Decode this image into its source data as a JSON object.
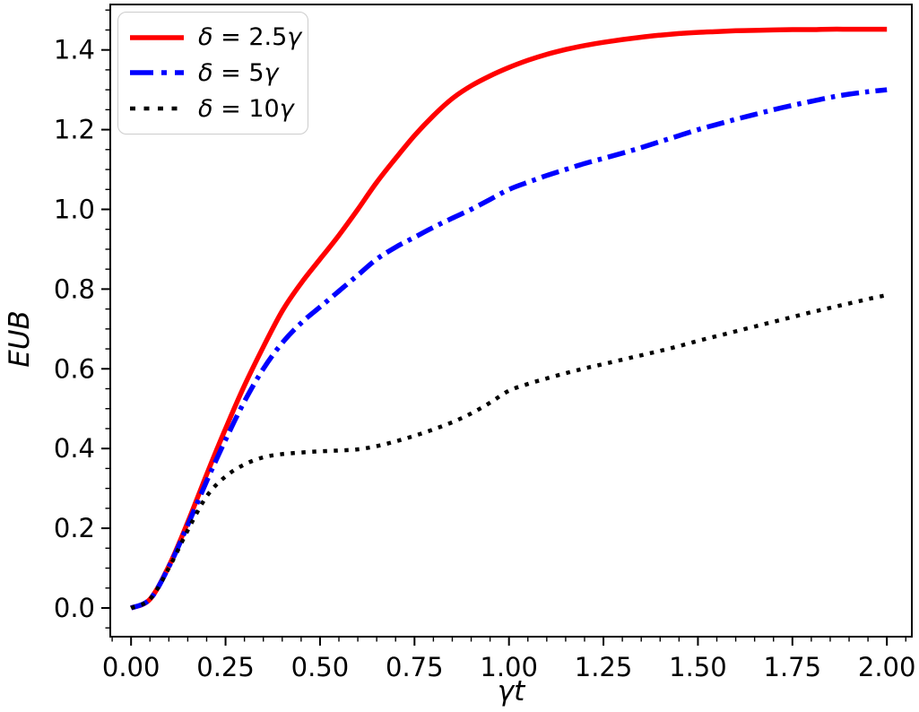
{
  "figure": {
    "background": "#ffffff",
    "legend": {
      "items": [
        {
          "sym": "δ",
          "eq": " = ",
          "val": "2.5",
          "unit": "γ"
        },
        {
          "sym": "δ",
          "eq": " = ",
          "val": "5",
          "unit": "γ"
        },
        {
          "sym": "δ",
          "eq": " = ",
          "val": "10",
          "unit": "γ"
        }
      ]
    }
  },
  "chart_data": {
    "type": "line",
    "title": "",
    "xlabel": "γt",
    "ylabel": "EUB",
    "xlim": [
      -0.055,
      2.066
    ],
    "ylim": [
      -0.072,
      1.514
    ],
    "xtick_labels": [
      "0.00",
      "0.25",
      "0.50",
      "0.75",
      "1.00",
      "1.25",
      "1.50",
      "1.75",
      "2.00"
    ],
    "ytick_labels": [
      "0.0",
      "0.2",
      "0.4",
      "0.6",
      "0.8",
      "1.0",
      "1.2",
      "1.4"
    ],
    "minor_xtick_step": 0.05,
    "minor_ytick_step": 0.05,
    "major_xtick_step": 0.25,
    "major_ytick_step": 0.2,
    "grid": false,
    "legend_position": "upper left",
    "axis_color": "#000000",
    "x": [
      0.0,
      0.05,
      0.1,
      0.15,
      0.2,
      0.25,
      0.3,
      0.35,
      0.4,
      0.45,
      0.5,
      0.55,
      0.6,
      0.65,
      0.7,
      0.75,
      0.8,
      0.85,
      0.9,
      0.95,
      1.0,
      1.05,
      1.1,
      1.15,
      1.2,
      1.25,
      1.3,
      1.35,
      1.4,
      1.45,
      1.5,
      1.55,
      1.6,
      1.65,
      1.7,
      1.75,
      1.8,
      1.85,
      1.9,
      1.95,
      2.0
    ],
    "series": [
      {
        "name": "δ = 2.5γ",
        "color": "#ff0000",
        "linestyle": "solid",
        "linewidth": 5.5,
        "values": [
          0.0,
          0.022,
          0.105,
          0.215,
          0.335,
          0.45,
          0.558,
          0.655,
          0.745,
          0.815,
          0.875,
          0.935,
          1.0,
          1.068,
          1.128,
          1.185,
          1.235,
          1.278,
          1.31,
          1.335,
          1.356,
          1.374,
          1.389,
          1.401,
          1.411,
          1.419,
          1.426,
          1.432,
          1.437,
          1.441,
          1.444,
          1.446,
          1.448,
          1.449,
          1.45,
          1.451,
          1.451,
          1.452,
          1.452,
          1.452,
          1.452
        ]
      },
      {
        "name": "δ = 5γ",
        "color": "#0000ff",
        "linestyle": "dashdot",
        "linewidth": 5.5,
        "values": [
          0.0,
          0.022,
          0.103,
          0.208,
          0.318,
          0.422,
          0.518,
          0.6,
          0.665,
          0.715,
          0.755,
          0.795,
          0.835,
          0.875,
          0.905,
          0.93,
          0.955,
          0.978,
          1.0,
          1.025,
          1.05,
          1.068,
          1.085,
          1.1,
          1.115,
          1.128,
          1.141,
          1.155,
          1.17,
          1.185,
          1.2,
          1.213,
          1.226,
          1.238,
          1.25,
          1.261,
          1.271,
          1.281,
          1.289,
          1.295,
          1.3
        ]
      },
      {
        "name": "δ = 10γ",
        "color": "#000000",
        "linestyle": "dotted",
        "linewidth": 4.5,
        "values": [
          0.0,
          0.022,
          0.1,
          0.195,
          0.28,
          0.33,
          0.36,
          0.378,
          0.386,
          0.39,
          0.393,
          0.395,
          0.398,
          0.406,
          0.418,
          0.432,
          0.448,
          0.466,
          0.488,
          0.515,
          0.545,
          0.562,
          0.576,
          0.589,
          0.601,
          0.612,
          0.623,
          0.634,
          0.645,
          0.657,
          0.67,
          0.682,
          0.694,
          0.706,
          0.718,
          0.73,
          0.742,
          0.753,
          0.764,
          0.775,
          0.785
        ]
      }
    ]
  }
}
